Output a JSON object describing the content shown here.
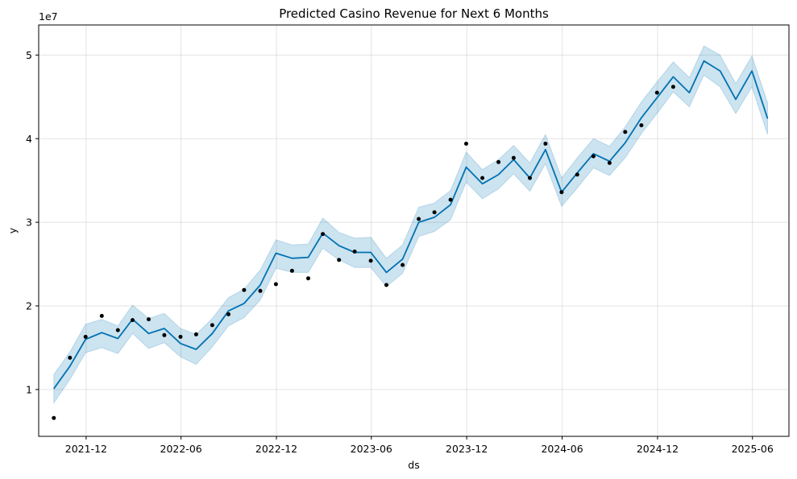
{
  "chart_data": {
    "type": "line",
    "title": "Predicted Casino Revenue for Next 6 Months",
    "xlabel": "ds",
    "ylabel": "y",
    "y_multiplier_label": "1e7",
    "y_scale": 10000000,
    "xlim": [
      "2021-09-01",
      "2025-08-10"
    ],
    "ylim": [
      0.44,
      5.36
    ],
    "y_ticks": [
      1,
      2,
      3,
      4,
      5
    ],
    "x_ticks": [
      {
        "date": "2021-12-01",
        "label": "2021-12"
      },
      {
        "date": "2022-06-01",
        "label": "2022-06"
      },
      {
        "date": "2022-12-01",
        "label": "2022-12"
      },
      {
        "date": "2023-06-01",
        "label": "2023-06"
      },
      {
        "date": "2023-12-01",
        "label": "2023-12"
      },
      {
        "date": "2024-06-01",
        "label": "2024-06"
      },
      {
        "date": "2024-12-01",
        "label": "2024-12"
      },
      {
        "date": "2025-06-01",
        "label": "2025-06"
      }
    ],
    "grid": true,
    "colors": {
      "forecast": "#0072B2",
      "uncertainty": "#0072B2",
      "actual": "#000000"
    },
    "series": [
      {
        "kind": "observed",
        "points": [
          [
            "2021-09-30",
            0.66
          ],
          [
            "2021-10-31",
            1.38
          ],
          [
            "2021-11-30",
            1.63
          ],
          [
            "2021-12-31",
            1.88
          ],
          [
            "2022-01-31",
            1.71
          ],
          [
            "2022-02-28",
            1.83
          ],
          [
            "2022-03-31",
            1.84
          ],
          [
            "2022-04-30",
            1.65
          ],
          [
            "2022-05-31",
            1.63
          ],
          [
            "2022-06-30",
            1.66
          ],
          [
            "2022-07-31",
            1.77
          ],
          [
            "2022-08-31",
            1.9
          ],
          [
            "2022-09-30",
            2.19
          ],
          [
            "2022-10-31",
            2.18
          ],
          [
            "2022-11-30",
            2.26
          ],
          [
            "2022-12-31",
            2.42
          ],
          [
            "2023-01-31",
            2.33
          ],
          [
            "2023-02-28",
            2.86
          ],
          [
            "2023-03-31",
            2.55
          ],
          [
            "2023-04-30",
            2.65
          ],
          [
            "2023-05-31",
            2.54
          ],
          [
            "2023-06-30",
            2.25
          ],
          [
            "2023-07-31",
            2.49
          ],
          [
            "2023-08-31",
            3.04
          ],
          [
            "2023-09-30",
            3.12
          ],
          [
            "2023-10-31",
            3.27
          ],
          [
            "2023-11-30",
            3.94
          ],
          [
            "2023-12-31",
            3.53
          ],
          [
            "2024-01-31",
            3.72
          ],
          [
            "2024-02-29",
            3.77
          ],
          [
            "2024-03-31",
            3.53
          ],
          [
            "2024-04-30",
            3.94
          ],
          [
            "2024-05-31",
            3.36
          ],
          [
            "2024-06-30",
            3.57
          ],
          [
            "2024-07-31",
            3.79
          ],
          [
            "2024-08-31",
            3.71
          ],
          [
            "2024-09-30",
            4.08
          ],
          [
            "2024-10-31",
            4.16
          ],
          [
            "2024-11-30",
            4.55
          ],
          [
            "2024-12-31",
            4.62
          ]
        ]
      },
      {
        "kind": "forecast",
        "points": [
          [
            "2021-09-30",
            1.01
          ],
          [
            "2021-10-31",
            1.28
          ],
          [
            "2021-11-30",
            1.6
          ],
          [
            "2021-12-31",
            1.68
          ],
          [
            "2022-01-31",
            1.61
          ],
          [
            "2022-02-28",
            1.84
          ],
          [
            "2022-03-31",
            1.67
          ],
          [
            "2022-04-30",
            1.73
          ],
          [
            "2022-05-31",
            1.55
          ],
          [
            "2022-06-30",
            1.48
          ],
          [
            "2022-07-31",
            1.67
          ],
          [
            "2022-08-31",
            1.94
          ],
          [
            "2022-09-30",
            2.03
          ],
          [
            "2022-10-31",
            2.25
          ],
          [
            "2022-11-30",
            2.63
          ],
          [
            "2022-12-31",
            2.57
          ],
          [
            "2023-01-31",
            2.58
          ],
          [
            "2023-02-28",
            2.87
          ],
          [
            "2023-03-31",
            2.72
          ],
          [
            "2023-04-30",
            2.64
          ],
          [
            "2023-05-31",
            2.64
          ],
          [
            "2023-06-30",
            2.4
          ],
          [
            "2023-07-31",
            2.56
          ],
          [
            "2023-08-31",
            3.0
          ],
          [
            "2023-09-30",
            3.06
          ],
          [
            "2023-10-31",
            3.21
          ],
          [
            "2023-11-30",
            3.66
          ],
          [
            "2023-12-31",
            3.46
          ],
          [
            "2024-01-31",
            3.57
          ],
          [
            "2024-02-29",
            3.75
          ],
          [
            "2024-03-31",
            3.53
          ],
          [
            "2024-04-30",
            3.87
          ],
          [
            "2024-05-31",
            3.36
          ],
          [
            "2024-06-30",
            3.59
          ],
          [
            "2024-07-31",
            3.82
          ],
          [
            "2024-08-31",
            3.73
          ],
          [
            "2024-09-30",
            3.95
          ],
          [
            "2024-10-31",
            4.25
          ],
          [
            "2024-11-30",
            4.49
          ],
          [
            "2024-12-31",
            4.74
          ],
          [
            "2025-01-31",
            4.55
          ],
          [
            "2025-02-28",
            4.93
          ],
          [
            "2025-03-31",
            4.81
          ],
          [
            "2025-04-30",
            4.47
          ],
          [
            "2025-05-31",
            4.81
          ],
          [
            "2025-06-30",
            4.24
          ]
        ]
      },
      {
        "kind": "uncertainty_interval",
        "upper": [
          1.18,
          1.45,
          1.78,
          1.84,
          1.76,
          2.01,
          1.85,
          1.91,
          1.73,
          1.66,
          1.85,
          2.1,
          2.2,
          2.43,
          2.79,
          2.73,
          2.74,
          3.05,
          2.88,
          2.81,
          2.82,
          2.57,
          2.73,
          3.18,
          3.23,
          3.38,
          3.84,
          3.63,
          3.75,
          3.92,
          3.71,
          4.05,
          3.53,
          3.77,
          4.0,
          3.91,
          4.14,
          4.44,
          4.68,
          4.92,
          4.73,
          5.11,
          5.0,
          4.66,
          4.99,
          4.43
        ],
        "lower": [
          0.84,
          1.12,
          1.44,
          1.5,
          1.43,
          1.67,
          1.49,
          1.56,
          1.39,
          1.3,
          1.51,
          1.76,
          1.86,
          2.07,
          2.45,
          2.4,
          2.4,
          2.69,
          2.55,
          2.46,
          2.46,
          2.23,
          2.39,
          2.83,
          2.89,
          3.03,
          3.48,
          3.28,
          3.4,
          3.58,
          3.37,
          3.7,
          3.19,
          3.41,
          3.65,
          3.56,
          3.77,
          4.06,
          4.3,
          4.56,
          4.38,
          4.76,
          4.62,
          4.3,
          4.62,
          4.05
        ]
      }
    ]
  }
}
